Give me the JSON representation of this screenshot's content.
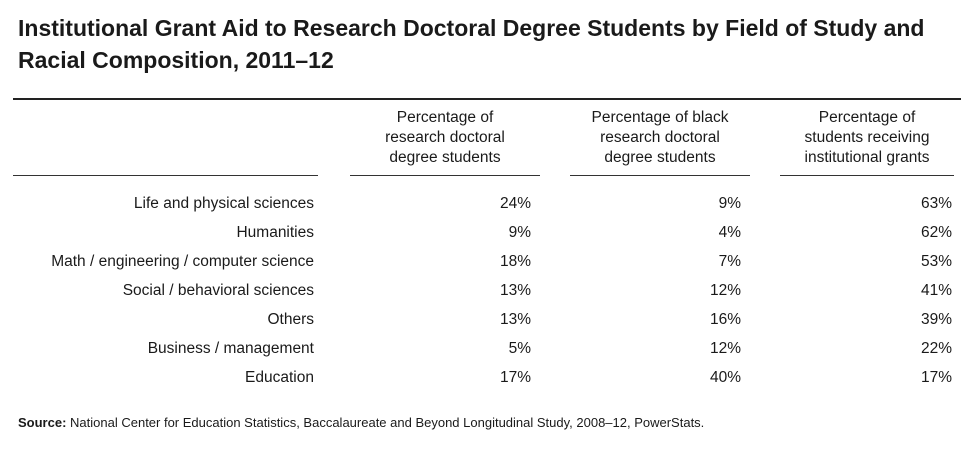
{
  "chart_data": {
    "type": "table",
    "title": "Institutional Grant Aid to Research Doctoral Degree Students by Field of Study and Racial Composition, 2011–12",
    "columns": [
      "Percentage of research doctoral degree students",
      "Percentage of black research doctoral degree students",
      "Percentage of students receiving institutional grants"
    ],
    "column_lines": [
      [
        "Percentage of",
        "research doctoral",
        "degree students"
      ],
      [
        "Percentage of black",
        "research doctoral",
        "degree students"
      ],
      [
        "Percentage of",
        "students receiving",
        "institutional grants"
      ]
    ],
    "rows": [
      {
        "label": "Life and physical sciences",
        "values": [
          "24%",
          "9%",
          "63%"
        ]
      },
      {
        "label": "Humanities",
        "values": [
          "9%",
          "4%",
          "62%"
        ]
      },
      {
        "label": "Math / engineering / computer science",
        "values": [
          "18%",
          "7%",
          "53%"
        ]
      },
      {
        "label": "Social / behavioral sciences",
        "values": [
          "13%",
          "12%",
          "41%"
        ]
      },
      {
        "label": "Others",
        "values": [
          "13%",
          "16%",
          "39%"
        ]
      },
      {
        "label": "Business / management",
        "values": [
          "5%",
          "12%",
          "22%"
        ]
      },
      {
        "label": "Education",
        "values": [
          "17%",
          "40%",
          "17%"
        ]
      }
    ]
  },
  "source": {
    "label": "Source:",
    "text": "National Center for Education Statistics, Baccalaureate and Beyond Longitudinal Study, 2008–12, PowerStats."
  }
}
